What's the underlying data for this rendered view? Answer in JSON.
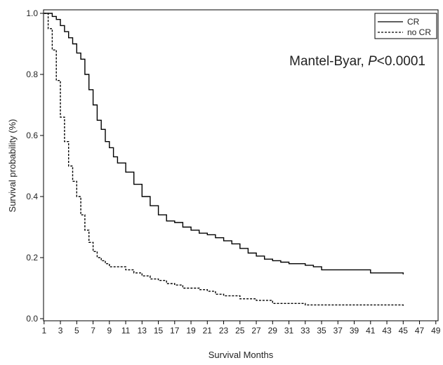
{
  "chart_data": {
    "type": "line",
    "title": "",
    "xlabel": "Survival Months",
    "ylabel": "Survival probability (%)",
    "xlim": [
      1,
      49
    ],
    "ylim": [
      0,
      1.0
    ],
    "xticks": [
      1,
      3,
      5,
      7,
      9,
      11,
      13,
      15,
      17,
      19,
      21,
      23,
      25,
      27,
      29,
      31,
      33,
      35,
      37,
      39,
      41,
      43,
      45,
      47,
      49
    ],
    "yticks": [
      0.0,
      0.2,
      0.4,
      0.6,
      0.8,
      1.0
    ],
    "ytick_labels": [
      "0.0",
      "0.2",
      "0.4",
      "0.6",
      "0.8",
      "1.0"
    ],
    "annotation": {
      "prefix": "Mantel-Byar, ",
      "italic": "P",
      "suffix": "<0.0001"
    },
    "legend": {
      "placement": "top-right"
    },
    "series": [
      {
        "name": "CR",
        "style": "solid",
        "color": "#000000",
        "x": [
          1,
          1.5,
          2,
          2.5,
          3,
          3.5,
          4,
          4.5,
          5,
          5.5,
          6,
          6.5,
          7,
          7.5,
          8,
          8.5,
          9,
          9.5,
          10,
          11,
          12,
          13,
          14,
          15,
          16,
          17,
          18,
          19,
          20,
          21,
          22,
          23,
          24,
          25,
          26,
          27,
          28,
          29,
          30,
          31,
          32,
          33,
          34,
          35,
          36,
          37,
          38,
          39,
          40,
          41,
          42,
          43,
          44,
          45
        ],
        "y": [
          1.0,
          1.0,
          0.99,
          0.98,
          0.96,
          0.94,
          0.92,
          0.9,
          0.87,
          0.85,
          0.8,
          0.75,
          0.7,
          0.65,
          0.62,
          0.58,
          0.56,
          0.53,
          0.51,
          0.48,
          0.44,
          0.4,
          0.37,
          0.34,
          0.32,
          0.315,
          0.3,
          0.29,
          0.28,
          0.275,
          0.265,
          0.255,
          0.245,
          0.23,
          0.215,
          0.205,
          0.195,
          0.19,
          0.185,
          0.18,
          0.18,
          0.175,
          0.17,
          0.16,
          0.16,
          0.16,
          0.16,
          0.16,
          0.16,
          0.15,
          0.15,
          0.15,
          0.15,
          0.145
        ]
      },
      {
        "name": "no CR",
        "style": "dashed",
        "color": "#000000",
        "x": [
          1,
          1.5,
          2,
          2.5,
          3,
          3.5,
          4,
          4.5,
          5,
          5.5,
          6,
          6.5,
          7,
          7.5,
          8,
          8.5,
          9,
          10,
          11,
          12,
          13,
          14,
          15,
          16,
          17,
          18,
          19,
          20,
          21,
          22,
          23,
          25,
          27,
          29,
          31,
          33,
          35,
          37,
          39,
          41,
          43,
          45
        ],
        "y": [
          1.0,
          0.95,
          0.88,
          0.78,
          0.66,
          0.58,
          0.5,
          0.45,
          0.4,
          0.34,
          0.29,
          0.25,
          0.22,
          0.2,
          0.19,
          0.18,
          0.17,
          0.17,
          0.16,
          0.15,
          0.14,
          0.13,
          0.125,
          0.115,
          0.11,
          0.1,
          0.1,
          0.095,
          0.09,
          0.08,
          0.075,
          0.065,
          0.06,
          0.05,
          0.05,
          0.045,
          0.045,
          0.045,
          0.045,
          0.045,
          0.045,
          0.04
        ]
      }
    ]
  }
}
